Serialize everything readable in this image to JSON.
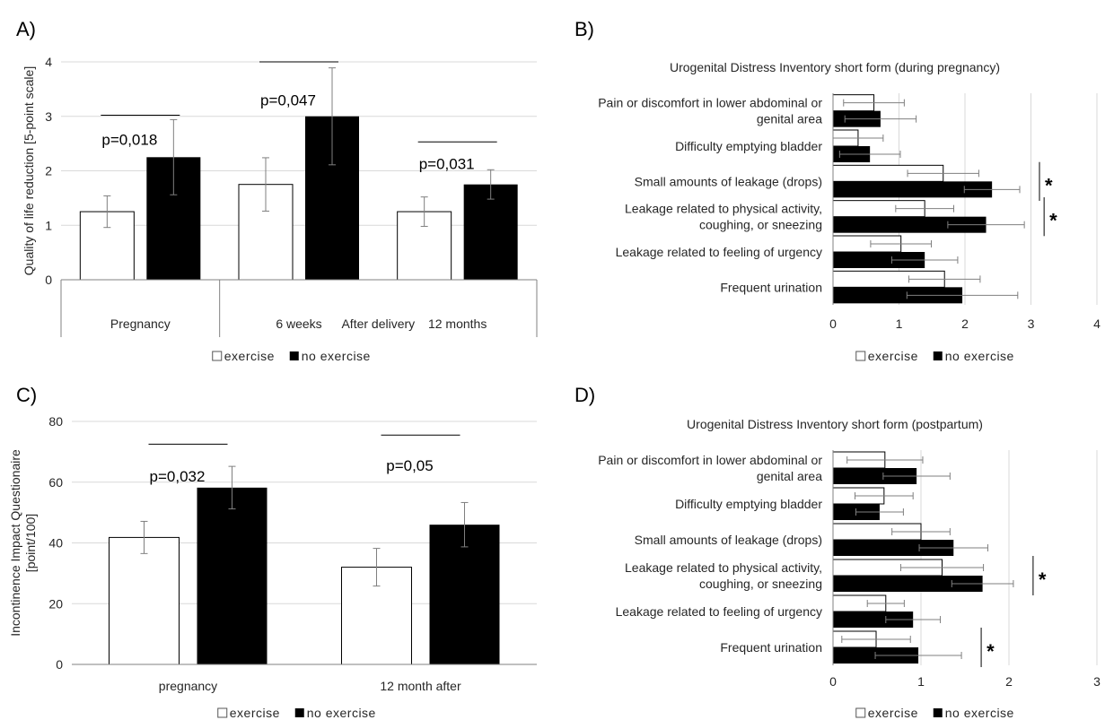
{
  "colors": {
    "exercise": "#ffffff",
    "no_exercise": "#000000",
    "grid": "#d9d9d9",
    "axis": "#808080",
    "err": "#7f7f7f"
  },
  "chart_data": [
    {
      "panel": "A)",
      "type": "bar",
      "ylabel": "Quality of life reduction [5-point scale]",
      "ylim": [
        0,
        4
      ],
      "yticks": [
        "0",
        "1",
        "2",
        "3",
        "4"
      ],
      "categories": [
        "Pregnancy",
        "6 weeks",
        "12 months"
      ],
      "group_label": "After delivery",
      "series": [
        {
          "name": "exercise",
          "values": [
            1.25,
            1.75,
            1.25
          ],
          "err": [
            0.29,
            0.49,
            0.27
          ]
        },
        {
          "name": "no exercise",
          "values": [
            2.25,
            3.0,
            1.75
          ],
          "err": [
            0.69,
            0.89,
            0.27
          ]
        }
      ],
      "annotations": [
        {
          "text": "p=0,018",
          "category": 0,
          "line_y": 3.02,
          "text_y": 2.58
        },
        {
          "text": "p=0,047",
          "category": 1,
          "line_y": 4.0,
          "text_y": 3.3
        },
        {
          "text": "p=0,031",
          "category": 2,
          "line_y": 2.53,
          "text_y": 2.13
        }
      ],
      "legend": [
        "exercise",
        "no exercise"
      ]
    },
    {
      "panel": "B)",
      "type": "bar",
      "orientation": "horizontal",
      "title": "Urogenital Distress Inventory short form (during pregnancy)",
      "xlim": [
        0,
        4
      ],
      "xticks": [
        "0",
        "1",
        "2",
        "3",
        "4"
      ],
      "categories": [
        [
          "Pain or discomfort in lower abdominal or",
          "genital area"
        ],
        [
          "Difficulty emptying bladder"
        ],
        [
          "Small amounts of leakage (drops)"
        ],
        [
          "Leakage related to physical activity,",
          "coughing, or sneezing"
        ],
        [
          "Leakage related to feeling of urgency"
        ],
        [
          "Frequent urination"
        ]
      ],
      "series": [
        {
          "name": "exercise",
          "values": [
            0.62,
            0.38,
            1.67,
            1.39,
            1.03,
            1.69
          ],
          "err": [
            0.46,
            0.38,
            0.54,
            0.44,
            0.46,
            0.54
          ]
        },
        {
          "name": "no exercise",
          "values": [
            0.72,
            0.56,
            2.41,
            2.32,
            1.39,
            1.96
          ],
          "err": [
            0.54,
            0.46,
            0.42,
            0.58,
            0.5,
            0.84
          ]
        }
      ],
      "significant": [
        2,
        3
      ],
      "star": "*",
      "legend": [
        "exercise",
        "no exercise"
      ]
    },
    {
      "panel": "C)",
      "type": "bar",
      "ylabel": [
        "Incontinence Impact Questionaire",
        "[point/100]"
      ],
      "ylim": [
        0,
        80
      ],
      "yticks": [
        "0",
        "20",
        "40",
        "60",
        "80"
      ],
      "categories": [
        "pregnancy",
        "12 month after"
      ],
      "series": [
        {
          "name": "exercise",
          "values": [
            41.8,
            32.0
          ],
          "err": [
            5.3,
            6.2
          ]
        },
        {
          "name": "no exercise",
          "values": [
            58.2,
            46.0
          ],
          "err": [
            7.0,
            7.3
          ]
        }
      ],
      "annotations": [
        {
          "text": "p=0,032",
          "category": 0,
          "line_y": 72.5,
          "text_y": 62.0
        },
        {
          "text": "p=0,05",
          "category": 1,
          "line_y": 75.5,
          "text_y": 65.5
        }
      ],
      "legend": [
        "exercise",
        "no exercise"
      ]
    },
    {
      "panel": "D)",
      "type": "bar",
      "orientation": "horizontal",
      "title": "Urogenital Distress Inventory short form (postpartum)",
      "xlim": [
        0,
        3
      ],
      "xticks": [
        "0",
        "1",
        "2",
        "3"
      ],
      "categories": [
        [
          "Pain or discomfort in lower abdominal or",
          "genital area"
        ],
        [
          "Difficulty emptying bladder"
        ],
        [
          "Small amounts of leakage (drops)"
        ],
        [
          "Leakage related to physical activity,",
          "coughing, or sneezing"
        ],
        [
          "Leakage related to feeling of urgency"
        ],
        [
          "Frequent urination"
        ]
      ],
      "series": [
        {
          "name": "exercise",
          "values": [
            0.59,
            0.58,
            1.0,
            1.24,
            0.6,
            0.49
          ],
          "err": [
            0.43,
            0.33,
            0.33,
            0.47,
            0.21,
            0.39
          ]
        },
        {
          "name": "no exercise",
          "values": [
            0.95,
            0.53,
            1.37,
            1.7,
            0.91,
            0.97
          ],
          "err": [
            0.38,
            0.27,
            0.39,
            0.35,
            0.31,
            0.49
          ]
        }
      ],
      "significant": [
        3,
        5
      ],
      "star": "*",
      "legend": [
        "exercise",
        "no exercise"
      ]
    }
  ]
}
